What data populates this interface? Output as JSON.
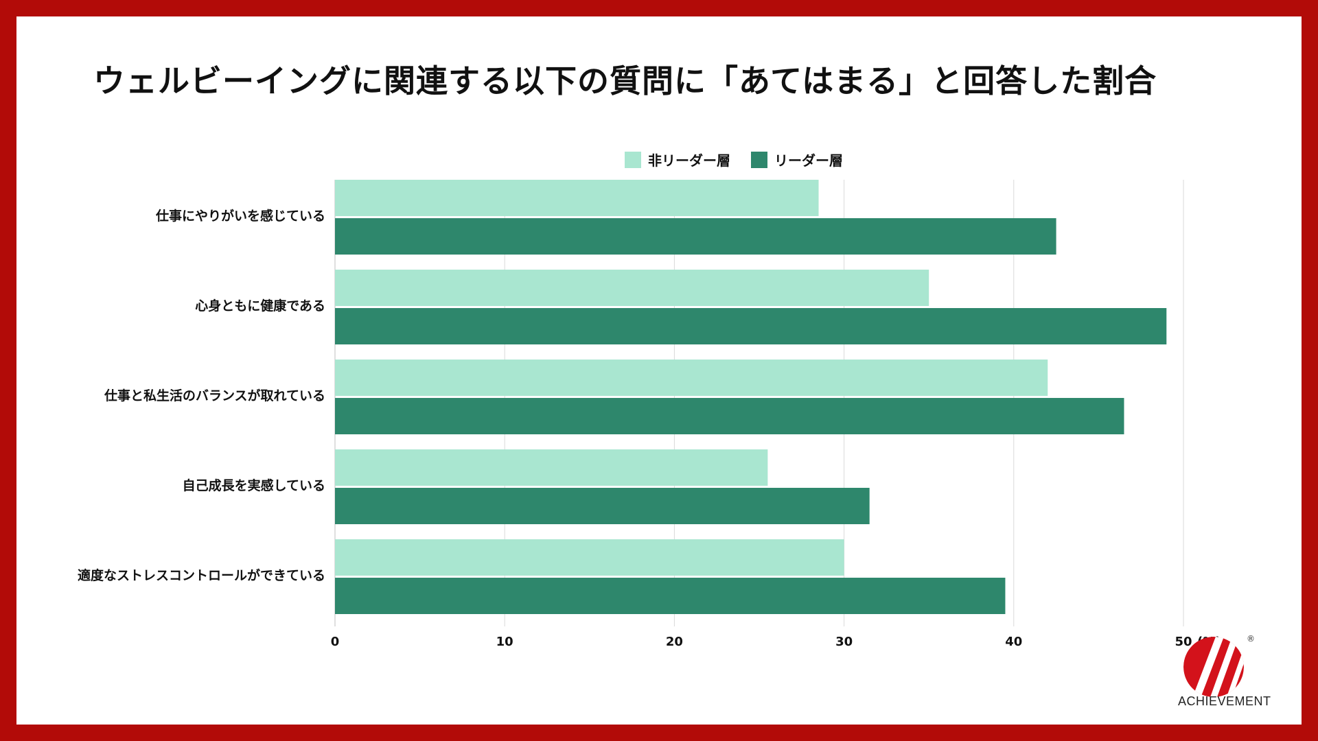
{
  "title": "ウェルビーイングに関連する以下の質問に「あてはまる」と回答した割合",
  "brand": {
    "name": "ACHIEVEMENT",
    "registered_mark": "®",
    "frame_color": "#b20b08",
    "logo_color": "#d3121b"
  },
  "chart_data": {
    "type": "bar",
    "orientation": "horizontal",
    "categories": [
      "仕事にやりがいを感じている",
      "心身ともに健康である",
      "仕事と私生活のバランスが取れている",
      "自己成長を実感している",
      "適度なストレスコントロールができている"
    ],
    "series": [
      {
        "name": "非リーダー層",
        "color": "#a9e6d0",
        "values": [
          28.5,
          35.0,
          42.0,
          25.5,
          30.0
        ]
      },
      {
        "name": "リーダー層",
        "color": "#2e876c",
        "values": [
          42.5,
          49.0,
          46.5,
          31.5,
          39.5
        ]
      }
    ],
    "xlim": [
      0,
      50
    ],
    "x_ticks": [
      0,
      10,
      20,
      30,
      40,
      50
    ],
    "x_unit": "(%)",
    "grid": true,
    "legend_position": "top"
  }
}
